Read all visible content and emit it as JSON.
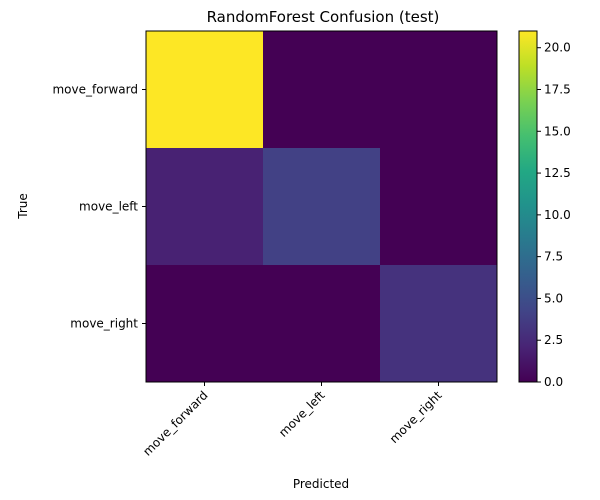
{
  "chart_data": {
    "type": "heatmap",
    "title": "RandomForest Confusion (test)",
    "xlabel": "Predicted",
    "ylabel": "True",
    "x_categories": [
      "move_forward",
      "move_left",
      "move_right"
    ],
    "y_categories": [
      "move_forward",
      "move_left",
      "move_right"
    ],
    "matrix": [
      [
        21,
        0,
        0
      ],
      [
        2,
        4,
        0
      ],
      [
        0,
        0,
        3
      ]
    ],
    "colorbar": {
      "colormap": "viridis",
      "vmin": 0,
      "vmax": 21,
      "ticks": [
        0.0,
        2.5,
        5.0,
        7.5,
        10.0,
        12.5,
        15.0,
        17.5,
        20.0
      ],
      "tick_labels": [
        "0.0",
        "2.5",
        "5.0",
        "7.5",
        "10.0",
        "12.5",
        "15.0",
        "17.5",
        "20.0"
      ]
    },
    "grid": false
  }
}
